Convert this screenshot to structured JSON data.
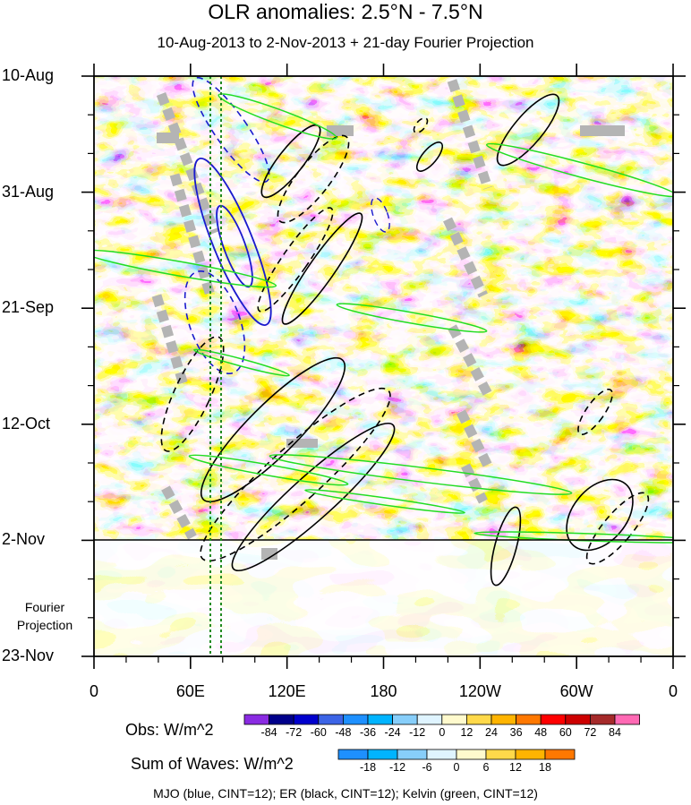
{
  "chart_data": {
    "type": "heatmap",
    "title": "OLR anomalies: 2.5°N - 7.5°N",
    "subtitle": "10-Aug-2013 to 2-Nov-2013 + 21-day Fourier Projection",
    "y_tick_labels": [
      "10-Aug",
      "31-Aug",
      "21-Sep",
      "12-Oct",
      "2-Nov",
      "23-Nov"
    ],
    "x_tick_labels": [
      "0",
      "60E",
      "120E",
      "180",
      "120W",
      "60W",
      "0"
    ],
    "projection_label": [
      "Fourier",
      "Projection"
    ],
    "obs_colorbar": {
      "title": "Obs: W/m^2",
      "levels": [
        -84,
        -72,
        -60,
        -48,
        -36,
        -24,
        -12,
        0,
        12,
        24,
        36,
        48,
        60,
        72,
        84
      ],
      "colors": [
        "#8a2be2",
        "#00008b",
        "#0000cd",
        "#3c64e6",
        "#1e90ff",
        "#00b4ff",
        "#87cefa",
        "#dff4ff",
        "#fffacd",
        "#ffd94a",
        "#ffb400",
        "#ff7800",
        "#ff0000",
        "#cd0000",
        "#a52a2a",
        "#ff69b4"
      ]
    },
    "waves_colorbar": {
      "title": "Sum of Waves: W/m^2",
      "levels": [
        -18,
        -12,
        -6,
        0,
        6,
        12,
        18
      ],
      "colors": [
        "#1e90ff",
        "#00b4ff",
        "#87cefa",
        "#dff4ff",
        "#fffacd",
        "#ffd94a",
        "#ffb400",
        "#ff7800"
      ]
    },
    "contour_legend": "MJO (blue, CINT=12); ER (black, CINT=12); Kelvin (green, CINT=12)"
  }
}
